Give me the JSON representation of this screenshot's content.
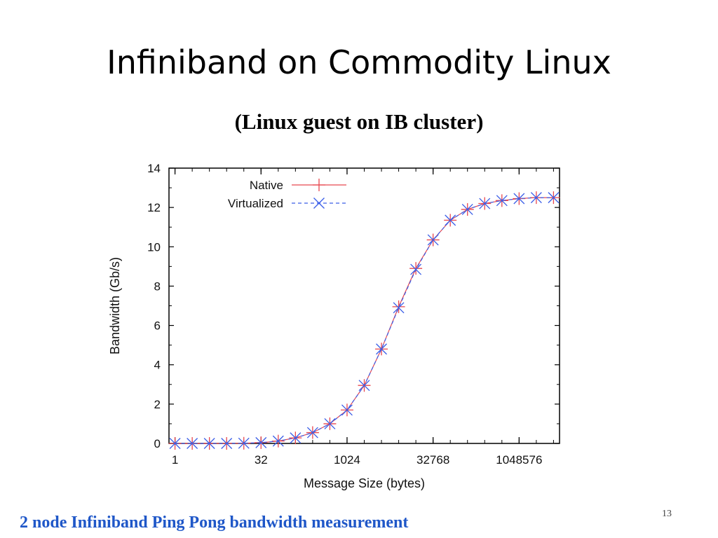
{
  "slide": {
    "title": "Infiniband on Commodity Linux",
    "subtitle": "(Linux guest on IB cluster)",
    "caption": "2 node Infiniband Ping Pong bandwidth measurement",
    "page_number": "13"
  },
  "chart_data": {
    "type": "line",
    "title": "",
    "xlabel": "Message Size (bytes)",
    "ylabel": "Bandwidth (Gb/s)",
    "x_scale": "log2",
    "x_ticks": [
      1,
      32,
      1024,
      32768,
      1048576
    ],
    "x": [
      1,
      2,
      4,
      8,
      16,
      32,
      64,
      128,
      256,
      512,
      1024,
      2048,
      4096,
      8192,
      16384,
      32768,
      65536,
      131072,
      262144,
      524288,
      1048576,
      2097152,
      4194304
    ],
    "ylim": [
      0,
      14
    ],
    "y_ticks": [
      0,
      2,
      4,
      6,
      8,
      10,
      12,
      14
    ],
    "grid": false,
    "legend_position": "top-left",
    "series": [
      {
        "name": "Native",
        "color": "#e8474f",
        "line_style": "solid",
        "marker": "plus",
        "values": [
          0.0,
          0.0,
          0.0,
          0.0,
          0.01,
          0.04,
          0.12,
          0.28,
          0.55,
          1.0,
          1.7,
          2.95,
          4.8,
          6.95,
          8.9,
          10.35,
          11.35,
          11.9,
          12.2,
          12.35,
          12.45,
          12.5,
          12.5
        ]
      },
      {
        "name": "Virtualized",
        "color": "#3a5ee8",
        "line_style": "dashed",
        "marker": "cross",
        "values": [
          0.0,
          0.0,
          0.0,
          0.0,
          0.01,
          0.04,
          0.12,
          0.28,
          0.55,
          1.0,
          1.7,
          2.95,
          4.8,
          6.9,
          8.85,
          10.35,
          11.35,
          11.9,
          12.2,
          12.35,
          12.45,
          12.5,
          12.5
        ]
      }
    ]
  }
}
